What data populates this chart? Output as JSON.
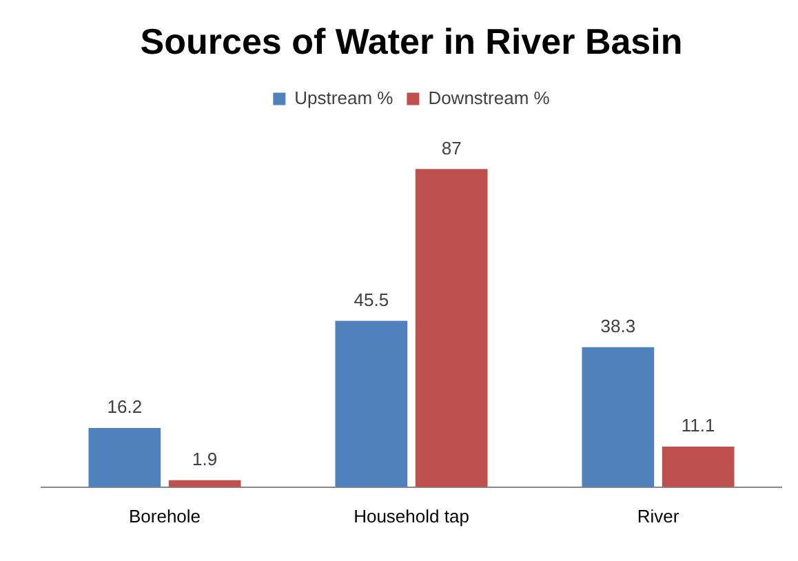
{
  "chart_data": {
    "type": "bar",
    "title": "Sources of Water in River Basin",
    "categories": [
      "Borehole",
      "Household tap",
      "River"
    ],
    "series": [
      {
        "name": "Upstream %",
        "color": "#4f81bd",
        "values": [
          16.2,
          45.5,
          38.3
        ]
      },
      {
        "name": "Downstream %",
        "color": "#c0504d",
        "values": [
          1.9,
          87,
          11.1
        ]
      }
    ],
    "data_labels": true,
    "legend": "top",
    "grid": false
  }
}
